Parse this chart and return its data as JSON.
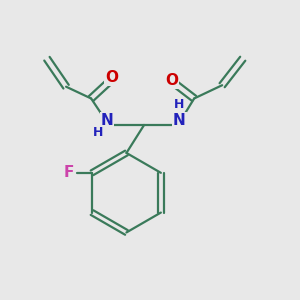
{
  "background_color": "#e8e8e8",
  "bond_color": "#3a7a5a",
  "atom_colors": {
    "N": "#2222bb",
    "O": "#cc0000",
    "F": "#cc44aa",
    "H": "#3a7a5a",
    "C": "#3a7a5a"
  },
  "figsize": [
    3.0,
    3.0
  ],
  "dpi": 100,
  "lw": 1.6
}
